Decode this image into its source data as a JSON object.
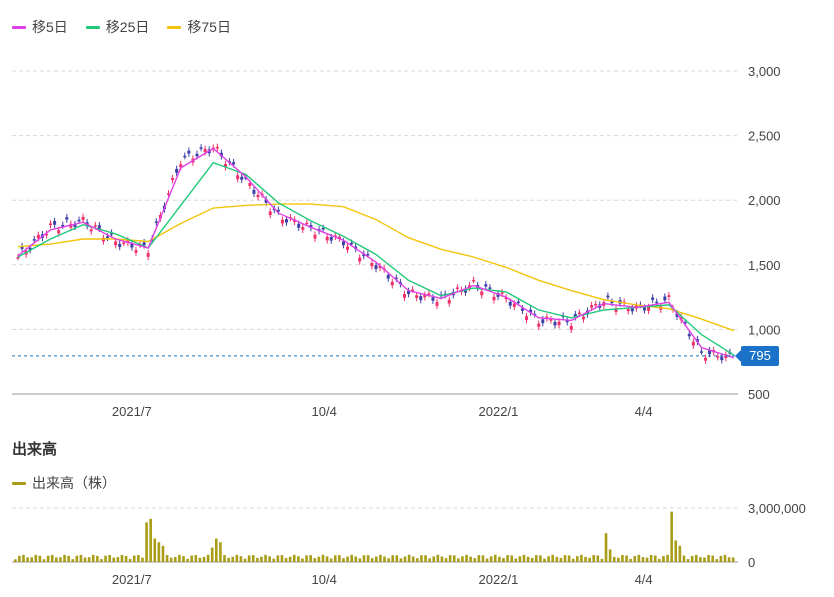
{
  "legend": {
    "ma5": {
      "label": "移5日",
      "color": "#e040e8"
    },
    "ma25": {
      "label": "移25日",
      "color": "#22c97a"
    },
    "ma75": {
      "label": "移75日",
      "color": "#f2c40c"
    }
  },
  "volume": {
    "title": "出来高",
    "legend_label": "出来高（株）",
    "color": "#a99d17"
  },
  "last_price": {
    "label": "795",
    "value": 795
  },
  "colors": {
    "up": "#f0306a",
    "down": "#3b3fa8",
    "grid": "#d8d8d8",
    "last_line": "#1a73c9"
  },
  "chart_data": [
    {
      "type": "candlestick",
      "title": "",
      "ylim": [
        500,
        3000
      ],
      "y_ticks": [
        500,
        1000,
        1500,
        2000,
        2500,
        3000
      ],
      "y_tick_labels": [
        "500",
        "1,000",
        "1,500",
        "2,000",
        "2,500",
        "3,000"
      ],
      "x_tick_labels": [
        "2021/7",
        "10/4",
        "2022/1",
        "4/4"
      ],
      "grid": true,
      "close": {
        "x": [
          "2021-05",
          "2021-06",
          "2021-07",
          "2021-07m",
          "2021-08",
          "2021-08m",
          "2021-09",
          "2021-09m",
          "2021-10",
          "2021-10m",
          "2021-11",
          "2021-11m",
          "2021-12",
          "2021-12m",
          "2022-01",
          "2022-01m",
          "2022-02",
          "2022-02m",
          "2022-03",
          "2022-03m",
          "2022-04",
          "2022-04m",
          "2022-05"
        ],
        "values": [
          1560,
          1790,
          1840,
          1680,
          1620,
          2310,
          2410,
          2150,
          1880,
          1780,
          1680,
          1500,
          1280,
          1230,
          1350,
          1240,
          1070,
          1060,
          1220,
          1160,
          1230,
          820,
          780
        ]
      },
      "ma5": [
        1570,
        1770,
        1830,
        1700,
        1630,
        2250,
        2400,
        2180,
        1900,
        1790,
        1690,
        1520,
        1300,
        1240,
        1340,
        1250,
        1090,
        1070,
        1200,
        1170,
        1210,
        860,
        780
      ],
      "ma25": [
        1560,
        1700,
        1810,
        1740,
        1630,
        1960,
        2290,
        2200,
        1980,
        1840,
        1720,
        1580,
        1380,
        1260,
        1320,
        1290,
        1150,
        1090,
        1150,
        1170,
        1190,
        960,
        800
      ],
      "ma75": [
        1640,
        1660,
        1700,
        1700,
        1680,
        1820,
        1940,
        1960,
        1970,
        1970,
        1950,
        1850,
        1710,
        1620,
        1560,
        1480,
        1380,
        1300,
        1230,
        1190,
        1160,
        1080,
        990
      ]
    },
    {
      "type": "bar",
      "title": "出来高",
      "ylim": [
        0,
        3000000
      ],
      "y_ticks": [
        0,
        3000000
      ],
      "y_tick_labels": [
        "0",
        "3,000,000"
      ],
      "x_tick_labels": [
        "2021/7",
        "10/4",
        "2022/1",
        "4/4"
      ],
      "spikes": [
        {
          "x": "2021-08",
          "values": [
            2200000,
            2400000,
            1300000,
            1100000,
            900000
          ]
        },
        {
          "x": "2021-09",
          "values": [
            800000,
            1300000,
            1100000
          ]
        },
        {
          "x": "2022-03",
          "values": [
            1600000,
            700000
          ]
        },
        {
          "x": "2022-04",
          "values": [
            2800000,
            1200000,
            900000
          ]
        }
      ]
    }
  ]
}
